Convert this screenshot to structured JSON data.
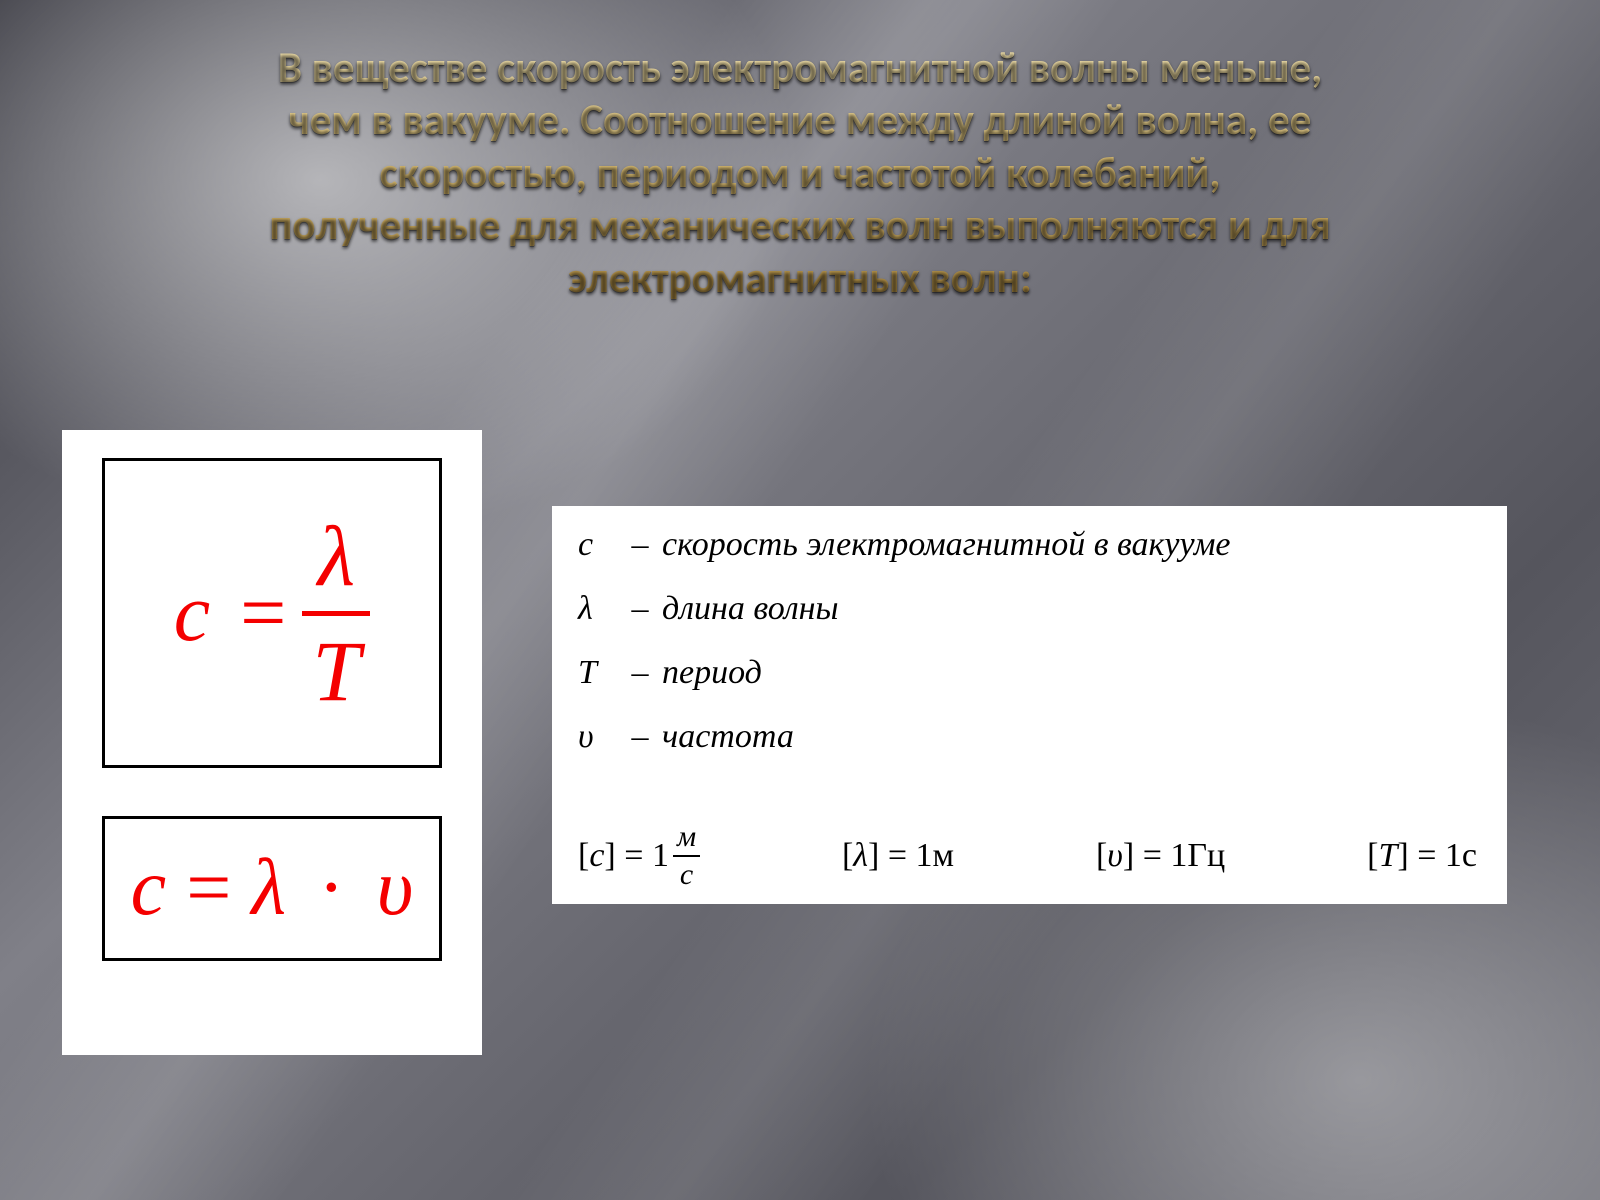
{
  "title_lines": [
    "В веществе скорость электромагнитной волны меньше,",
    "чем в вакууме. Соотношение между длиной волна, ее",
    "скоростью, периодом и частотой колебаний,",
    "полученные для механических волн выполняются и для",
    "электромагнитных волн:"
  ],
  "colors": {
    "title_gradient_top": "#f2e3b0",
    "title_gradient_mid": "#d9bd74",
    "title_gradient_bottom": "#a8863f",
    "formula_text": "#f40000",
    "card_bg": "#ffffff",
    "border": "#000000",
    "legend_text": "#000000"
  },
  "formulas": {
    "top": {
      "lhs": "c",
      "numerator": "λ",
      "denominator": "T"
    },
    "bottom": {
      "lhs": "c",
      "rhs1": "λ",
      "op": "·",
      "rhs2": "υ"
    }
  },
  "legend": [
    {
      "symbol": "c",
      "text": "скорость электромагнитной в вакууме"
    },
    {
      "symbol": "λ",
      "text": "длина волны"
    },
    {
      "symbol": "T",
      "text": "период"
    },
    {
      "symbol": "υ",
      "text": "частота"
    }
  ],
  "units": {
    "c": {
      "symbol": "c",
      "value": "1",
      "frac_num": "м",
      "frac_den": "с"
    },
    "lambda": {
      "symbol": "λ",
      "value": "1м"
    },
    "nu": {
      "symbol": "υ",
      "value": "1Гц"
    },
    "T": {
      "symbol": "T",
      "value": "1с"
    }
  },
  "typography": {
    "title_fontsize": 43,
    "title_weight": 700,
    "formula_fontsize": 82,
    "legend_fontsize": 34,
    "font_title": "Calibri",
    "font_math": "Times New Roman"
  }
}
